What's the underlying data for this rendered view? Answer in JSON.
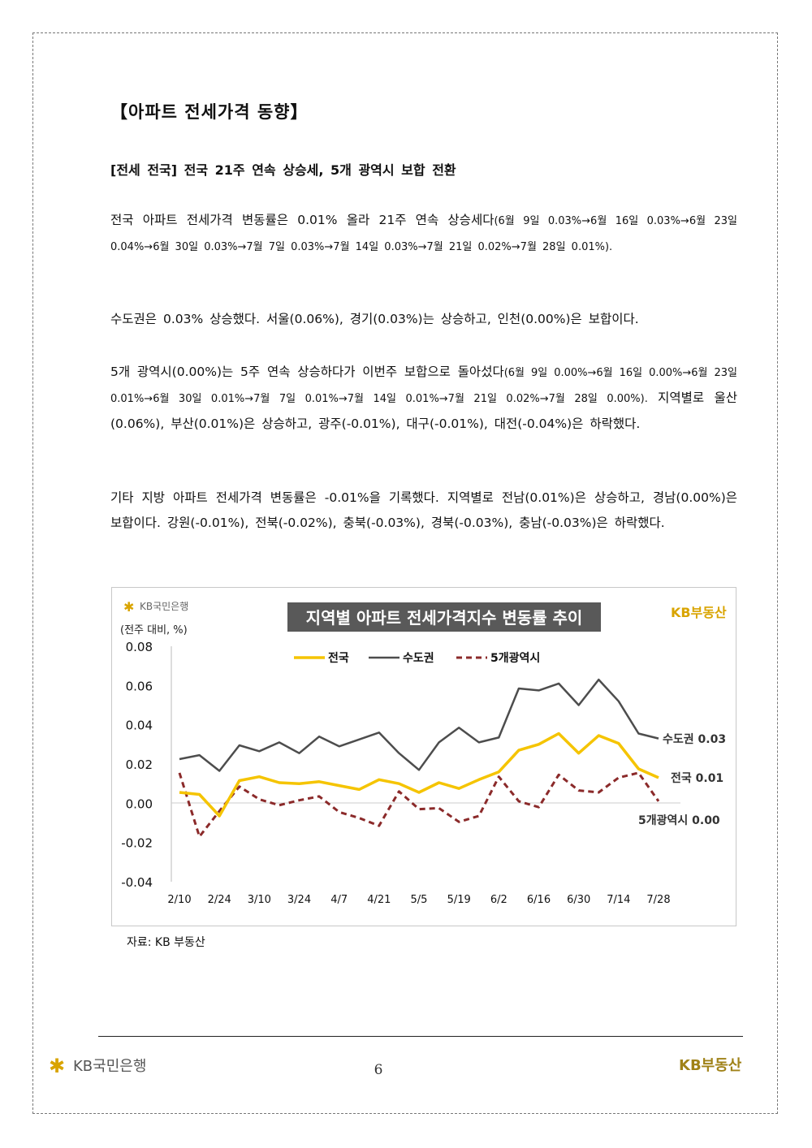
{
  "section_title": "【아파트 전세가격 동향】",
  "headline": "[전세 전국] 전국 21주 연속 상승세, 5개 광역시 보합 전환",
  "paragraphs": {
    "p1_main": "전국 아파트 전세가격 변동률은 0.01% 올라 21주 연속 상승세다",
    "p1_detail": "(6월 9일 0.03%→6월 16일 0.03%→6월 23일 0.04%→6월 30일 0.03%→7월 7일 0.03%→7월 14일 0.03%→7월 21일 0.02%→7월 28일 0.01%).",
    "p2": "수도권은 0.03% 상승했다. 서울(0.06%), 경기(0.03%)는 상승하고, 인천(0.00%)은 보합이다.",
    "p3_main": "5개 광역시(0.00%)는 5주 연속 상승하다가 이번주 보합으로 돌아섰다",
    "p3_detail": "(6월 9일 0.00%→6월 16일 0.00%→6월 23일 0.01%→6월 30일 0.01%→7월 7일 0.01%→7월 14일 0.01%→7월 21일 0.02%→7월 28일 0.00%).",
    "p3_tail": " 지역별로 울산(0.06%), 부산(0.01%)은 상승하고, 광주(-0.01%), 대구(-0.01%), 대전(-0.04%)은 하락했다.",
    "p4": "기타 지방 아파트 전세가격 변동률은 -0.01%을 기록했다. 지역별로 전남(0.01%)은 상승하고, 경남(0.00%)은 보합이다. 강원(-0.01%), 전북(-0.02%), 충북(-0.03%), 경북(-0.03%), 충남(-0.03%)은 하락했다."
  },
  "chart_brand_left": "KB국민은행",
  "chart_brand_right": "KB부동산",
  "source_note": "자료: KB 부동산",
  "footer": {
    "left_logo_text": "KB국민은행",
    "right_logo_text": "KB부동산",
    "page_number": "6"
  },
  "colors": {
    "nationwide": "#f5c400",
    "capital": "#4d4d4d",
    "metro": "#8b2a2a",
    "title_bg": "#595959",
    "kb_gold": "#d9a400",
    "kb_dark": "#a08218"
  },
  "chart_data": {
    "type": "line",
    "title": "지역별 아파트 전세가격지수 변동률 추이",
    "unit_label": "(전주 대비, %)",
    "ylim": [
      -0.04,
      0.08
    ],
    "y_ticks": [
      "0.08",
      "0.06",
      "0.04",
      "0.02",
      "0.00",
      "-0.02",
      "-0.04"
    ],
    "y_tick_values": [
      0.08,
      0.06,
      0.04,
      0.02,
      0.0,
      -0.02,
      -0.04
    ],
    "x_tick_labels": [
      "2/10",
      "2/24",
      "3/10",
      "3/24",
      "4/7",
      "4/21",
      "5/5",
      "5/19",
      "6/2",
      "6/16",
      "6/30",
      "7/14",
      "7/28"
    ],
    "x_tick_indices": [
      0,
      2,
      4,
      6,
      8,
      10,
      12,
      14,
      16,
      18,
      20,
      22,
      24
    ],
    "grid": false,
    "legend_position": "top",
    "series": [
      {
        "name": "전국",
        "style": "solid",
        "values": [
          0.0055,
          0.0045,
          -0.0065,
          0.0115,
          0.0135,
          0.0105,
          0.01,
          0.011,
          0.009,
          0.007,
          0.012,
          0.01,
          0.0055,
          0.0105,
          0.0075,
          0.012,
          0.016,
          0.027,
          0.03,
          0.0355,
          0.0255,
          0.0345,
          0.0305,
          0.0175,
          0.013
        ],
        "end_label": "전국 0.01"
      },
      {
        "name": "수도권",
        "style": "solid",
        "values": [
          0.0225,
          0.0245,
          0.0165,
          0.0295,
          0.0265,
          0.031,
          0.0255,
          0.034,
          0.029,
          0.0325,
          0.036,
          0.0255,
          0.017,
          0.031,
          0.0385,
          0.031,
          0.0335,
          0.0585,
          0.0575,
          0.061,
          0.05,
          0.063,
          0.052,
          0.0355,
          0.033
        ],
        "end_label": "수도권 0.03"
      },
      {
        "name": "5개광역시",
        "style": "dashed",
        "values": [
          0.0155,
          -0.017,
          -0.004,
          0.0085,
          0.002,
          -0.001,
          0.0015,
          0.0035,
          -0.0045,
          -0.0075,
          -0.0115,
          0.006,
          -0.003,
          -0.0025,
          -0.0095,
          -0.0065,
          0.0135,
          0.001,
          -0.002,
          0.0145,
          0.0065,
          0.0055,
          0.013,
          0.0155,
          0.001
        ],
        "end_label": "5개광역시 0.00"
      }
    ]
  }
}
